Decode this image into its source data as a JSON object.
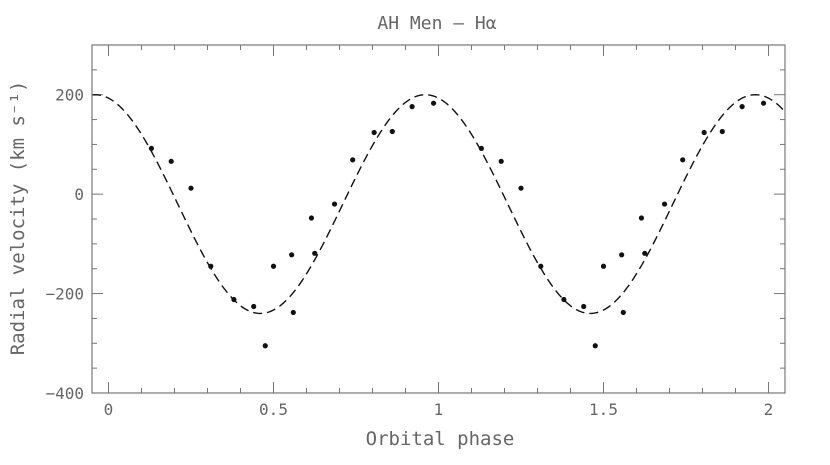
{
  "chart_data": {
    "type": "scatter",
    "title": "AH Men – Hα",
    "xlabel": "Orbital phase",
    "ylabel": "Radial velocity (km s⁻¹)",
    "xlim": [
      -0.05,
      2.05
    ],
    "ylim": [
      -400,
      300
    ],
    "x_ticks": {
      "major": [
        0,
        0.5,
        1,
        1.5,
        2
      ],
      "labels": [
        "0",
        "0.5",
        "1",
        "1.5",
        "2"
      ],
      "minor_step": 0.1
    },
    "y_ticks": {
      "major": [
        -400,
        -200,
        0,
        200
      ],
      "labels": [
        "−400",
        "−200",
        "0",
        "200"
      ],
      "minor_step": 50
    },
    "grid": false,
    "colors": {
      "axes": "#777777",
      "text": "#666666",
      "points": "#111111",
      "curve": "#111111"
    },
    "series": [
      {
        "kind": "points",
        "x": [
          0.13,
          0.19,
          0.25,
          0.31,
          0.38,
          0.44,
          0.475,
          0.5,
          0.555,
          0.56,
          0.615,
          0.625,
          0.685,
          0.74,
          0.805,
          0.86,
          0.92,
          0.985,
          1.13,
          1.19,
          1.25,
          1.31,
          1.38,
          1.44,
          1.475,
          1.5,
          1.555,
          1.56,
          1.615,
          1.625,
          1.685,
          1.74,
          1.805,
          1.86,
          1.92,
          1.985
        ],
        "y": [
          92,
          66,
          12,
          -145,
          -212,
          -226,
          -305,
          -145,
          -122,
          -238,
          -48,
          -119,
          -20,
          69,
          124,
          126,
          176,
          183,
          92,
          66,
          12,
          -145,
          -212,
          -226,
          -305,
          -145,
          -122,
          -238,
          -48,
          -119,
          -20,
          69,
          124,
          126,
          176,
          183
        ]
      },
      {
        "kind": "sine-fit",
        "gamma": -20,
        "amplitude": 220,
        "phase_of_max": 0.96
      }
    ]
  }
}
